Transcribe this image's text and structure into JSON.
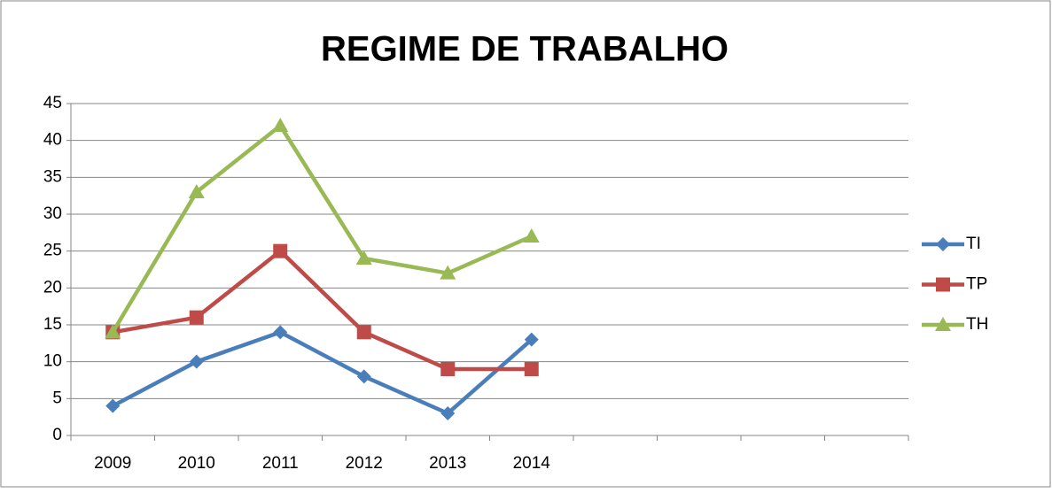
{
  "chart_data": {
    "type": "line",
    "title": "REGIME DE TRABALHO",
    "categories": [
      "2009",
      "2010",
      "2011",
      "2012",
      "2013",
      "2014",
      null,
      null,
      null,
      null
    ],
    "series": [
      {
        "name": "TI",
        "color": "#4a7ebb",
        "marker": "diamond",
        "values": [
          4,
          10,
          14,
          8,
          3,
          13,
          null,
          null,
          null,
          null
        ]
      },
      {
        "name": "TP",
        "color": "#be4b48",
        "marker": "square",
        "values": [
          14,
          16,
          25,
          14,
          9,
          9,
          null,
          null,
          null,
          null
        ]
      },
      {
        "name": "TH",
        "color": "#98b954",
        "marker": "triangle",
        "values": [
          14,
          33,
          42,
          24,
          22,
          27,
          null,
          null,
          null,
          null
        ]
      }
    ],
    "ylim": [
      0,
      45
    ],
    "yticks": [
      0,
      5,
      10,
      15,
      20,
      25,
      30,
      35,
      40,
      45
    ],
    "grid": true,
    "legend": "right"
  }
}
